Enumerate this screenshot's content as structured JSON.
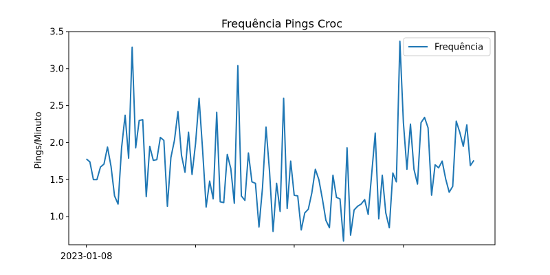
{
  "chart_data": {
    "type": "line",
    "title": "Frequência Pings Croc",
    "xlabel": "",
    "ylabel": "Pings/Minuto",
    "ylim": [
      0.62,
      3.5
    ],
    "yticks": [
      1.0,
      1.5,
      2.0,
      2.5,
      3.0,
      3.5
    ],
    "ytick_labels": [
      "1.0",
      "1.5",
      "2.0",
      "2.5",
      "3.0",
      "3.5"
    ],
    "x_start_index": 0,
    "x_end_index": 110,
    "xlim": [
      -5,
      116
    ],
    "xticks": [
      0,
      31,
      59,
      90
    ],
    "xtick_labels": [
      "2023-01-08",
      "",
      "",
      ""
    ],
    "legend": {
      "position": "top-right",
      "entries": [
        "Frequência"
      ]
    },
    "grid": false,
    "series": [
      {
        "name": "Frequência",
        "color": "#1f77b4",
        "values": [
          1.78,
          1.74,
          1.5,
          1.5,
          1.67,
          1.71,
          1.94,
          1.68,
          1.28,
          1.17,
          1.93,
          2.37,
          1.79,
          3.29,
          1.93,
          2.3,
          2.31,
          1.27,
          1.95,
          1.76,
          1.77,
          2.07,
          2.03,
          1.14,
          1.8,
          2.03,
          2.42,
          1.83,
          1.6,
          2.14,
          1.57,
          1.99,
          2.6,
          1.9,
          1.13,
          1.48,
          1.24,
          2.41,
          1.2,
          1.19,
          1.84,
          1.65,
          1.18,
          3.04,
          1.28,
          1.22,
          1.86,
          1.47,
          1.45,
          0.86,
          1.39,
          2.21,
          1.61,
          0.8,
          1.45,
          1.07,
          2.6,
          1.11,
          1.75,
          1.29,
          1.28,
          0.82,
          1.05,
          1.1,
          1.32,
          1.64,
          1.5,
          1.24,
          0.95,
          0.85,
          1.56,
          1.26,
          1.24,
          0.67,
          1.93,
          0.75,
          1.09,
          1.14,
          1.17,
          1.23,
          1.03,
          1.58,
          2.13,
          0.97,
          1.56,
          1.05,
          0.85,
          1.59,
          1.47,
          3.37,
          2.27,
          1.64,
          2.25,
          1.64,
          1.44,
          2.27,
          2.34,
          2.2,
          1.29,
          1.7,
          1.66,
          1.75,
          1.51,
          1.33,
          1.41,
          2.29,
          2.14,
          1.95,
          2.24,
          1.69,
          1.76
        ]
      }
    ]
  }
}
